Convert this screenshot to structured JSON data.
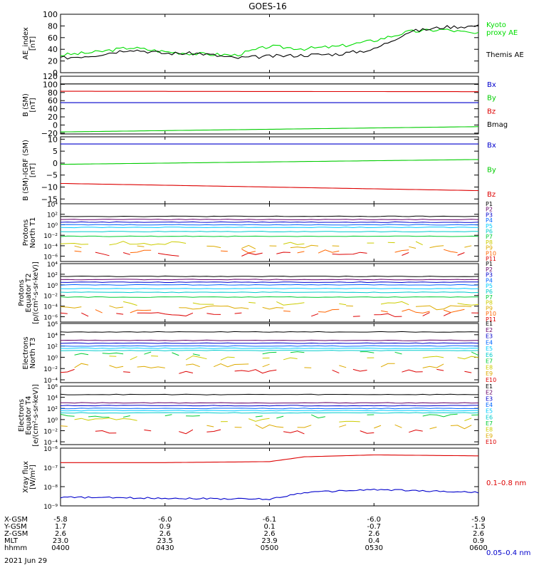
{
  "title": "GOES-16",
  "footer": {
    "rows": [
      {
        "label": "X-GSM",
        "values": [
          "-5.8",
          "-6.0",
          "-6.1",
          "-6.0",
          "-5.9"
        ]
      },
      {
        "label": "Y-GSM",
        "values": [
          "1.7",
          "0.9",
          "0.1",
          "-0.7",
          "-1.5"
        ]
      },
      {
        "label": "Z-GSM",
        "values": [
          "2.6",
          "2.6",
          "2.6",
          "2.6",
          "2.6"
        ]
      },
      {
        "label": "MLT",
        "values": [
          "23.0",
          "23.5",
          "23.9",
          "0.4",
          "0.9"
        ]
      },
      {
        "label": "hhmm",
        "values": [
          "0400",
          "0430",
          "0500",
          "0530",
          "0600"
        ]
      }
    ],
    "date": "2021 Jun 29"
  },
  "chart_data": [
    {
      "type": "line",
      "panel": "ae",
      "ylabel": [
        "AE_index",
        "[nT]"
      ],
      "yscale": "linear",
      "ylim": [
        0,
        100
      ],
      "yticks": [
        0,
        20,
        40,
        60,
        80,
        100
      ],
      "ytick_labels": [
        "0",
        "20",
        "40",
        "60",
        "80",
        "100"
      ],
      "x": [
        "0400",
        "0410",
        "0420",
        "0430",
        "0440",
        "0450",
        "0500",
        "0510",
        "0520",
        "0530",
        "0540",
        "0550",
        "0600"
      ],
      "series": [
        {
          "name": "Kyoto proxy AE",
          "color": "#00dd00",
          "values": [
            30,
            35,
            43,
            36,
            32,
            30,
            45,
            41,
            45,
            55,
            70,
            74,
            66
          ]
        },
        {
          "name": "Themis AE",
          "color": "#000000",
          "values": [
            25,
            30,
            40,
            33,
            33,
            25,
            28,
            30,
            32,
            40,
            70,
            78,
            80
          ]
        }
      ],
      "legend_positions": [
        [
          683,
          38
        ],
        [
          683,
          80
        ]
      ]
    },
    {
      "type": "line",
      "panel": "b",
      "ylabel": [
        "B (SM)",
        "[nT]"
      ],
      "yscale": "linear",
      "ylim": [
        -22,
        120
      ],
      "yticks": [
        -20,
        0,
        20,
        40,
        60,
        80,
        100,
        120
      ],
      "ytick_labels": [
        "−20",
        "0",
        "20",
        "40",
        "60",
        "80",
        "100",
        "120"
      ],
      "x": [
        "0400",
        "0600"
      ],
      "series": [
        {
          "name": "Bx",
          "color": "#0000cc",
          "values": [
            55,
            55
          ]
        },
        {
          "name": "By",
          "color": "#00cc00",
          "values": [
            -17,
            -4
          ]
        },
        {
          "name": "Bz",
          "color": "#dd0000",
          "values": [
            83,
            82
          ]
        },
        {
          "name": "Bmag",
          "color": "#000000",
          "values": [
            101,
            101
          ]
        }
      ]
    },
    {
      "type": "line",
      "panel": "bigrf",
      "ylabel": [
        "B (SM)-IGRF (SM)",
        "[nT]"
      ],
      "yscale": "linear",
      "ylim": [
        -17,
        11
      ],
      "yticks": [
        -15,
        -10,
        -5,
        0,
        5,
        10
      ],
      "ytick_labels": [
        "−15",
        "−10",
        "−5",
        "0",
        "5",
        "10"
      ],
      "x": [
        "0400",
        "0600"
      ],
      "series": [
        {
          "name": "Bx",
          "color": "#0000cc",
          "values": [
            8,
            8
          ]
        },
        {
          "name": "By",
          "color": "#00cc00",
          "values": [
            -0.5,
            1.5
          ]
        },
        {
          "name": "Bz",
          "color": "#dd0000",
          "values": [
            -8.5,
            -11.5
          ]
        }
      ]
    },
    {
      "type": "line",
      "panel": "protons_t1",
      "ylabel": [
        "Protons",
        "North T1"
      ],
      "yscale": "log",
      "ylim": [
        -7,
        4
      ],
      "yticks": [
        4,
        2,
        0,
        -2,
        -4,
        -6
      ],
      "ytick_labels": [
        "10⁴",
        "10²",
        "10⁰",
        "10⁻²",
        "10⁻⁴",
        "10⁻⁶"
      ],
      "legend": [
        "P1",
        "P2",
        "P3",
        "P4",
        "P5",
        "P6",
        "P7",
        "P8",
        "P9",
        "P10",
        "P11"
      ],
      "series_log": [
        1.6,
        1.0,
        0.5,
        0,
        -0.5,
        -1.3,
        -2.2,
        -3.5,
        -4.3,
        -5.0,
        -5.6
      ]
    },
    {
      "type": "line",
      "panel": "protons_t2",
      "ylabel": [
        "Protons",
        "Equator T2",
        "[p/(cm²-s-sr-keV)]"
      ],
      "yscale": "log",
      "ylim": [
        -7,
        4
      ],
      "yticks": [
        4,
        2,
        0,
        -2,
        -4,
        -6
      ],
      "ytick_labels": [
        "10⁴",
        "10²",
        "10⁰",
        "10⁻²",
        "10⁻⁴",
        "10⁻⁶"
      ],
      "legend": [
        "P1",
        "P2",
        "P3",
        "P4",
        "P5",
        "P6",
        "P7",
        "P8",
        "P9",
        "P10",
        "P11"
      ],
      "series_log": [
        1.6,
        1.0,
        0.5,
        0,
        -0.7,
        -1.4,
        -2.3,
        -3.5,
        -4.3,
        -5.0,
        -5.6
      ]
    },
    {
      "type": "line",
      "panel": "electrons_t3",
      "ylabel": [
        "Electrons",
        "North T3"
      ],
      "yscale": "log",
      "ylim": [
        -4.5,
        6
      ],
      "yticks": [
        6,
        4,
        2,
        0,
        -2,
        -4
      ],
      "ytick_labels": [
        "10⁶",
        "10⁴",
        "10²",
        "10⁰",
        "10⁻²",
        "10⁻⁴"
      ],
      "legend": [
        "E1",
        "E2",
        "E3",
        "E4",
        "E5",
        "E6",
        "E7",
        "E8",
        "E9",
        "E10"
      ],
      "series_log": [
        4.5,
        3.0,
        2.5,
        2.0,
        1.6,
        1.2,
        0.6,
        -0.1,
        -1.5,
        -2.5
      ]
    },
    {
      "type": "line",
      "panel": "electrons_t4",
      "ylabel": [
        "Electrons",
        "Equator T4",
        "[e/(cm²-s-sr-keV)]"
      ],
      "yscale": "log",
      "ylim": [
        -4.5,
        6
      ],
      "yticks": [
        6,
        4,
        2,
        0,
        -2,
        -4
      ],
      "ytick_labels": [
        "10⁶",
        "10⁴",
        "10²",
        "10⁰",
        "10⁻²",
        "10⁻⁴"
      ],
      "legend": [
        "E1",
        "E2",
        "E3",
        "E4",
        "E5",
        "E6",
        "E7",
        "E8",
        "E9",
        "E10"
      ],
      "series_log": [
        4.5,
        3.0,
        2.5,
        2.0,
        1.6,
        1.2,
        0.6,
        -0.1,
        -1.3,
        -2.2
      ]
    },
    {
      "type": "line",
      "panel": "xray",
      "ylabel": [
        "Xray flux",
        "[W/m²]"
      ],
      "yscale": "log",
      "ylim": [
        -9,
        -6
      ],
      "yticks": [
        -6,
        -7,
        -8,
        -9
      ],
      "ytick_labels": [
        "10⁻⁶",
        "10⁻⁷",
        "10⁻⁸",
        "10⁻⁹"
      ],
      "x": [
        "0400",
        "0430",
        "0500",
        "0510",
        "0530",
        "0600"
      ],
      "series": [
        {
          "name": "0.1–0.8 nm",
          "color": "#dd0000",
          "values_log": [
            -6.75,
            -6.75,
            -6.7,
            -6.45,
            -6.35,
            -6.4
          ]
        },
        {
          "name": "0.05–0.4 nm",
          "color": "#0000cc",
          "values_log": [
            -8.55,
            -8.6,
            -8.65,
            -8.3,
            -8.15,
            -8.3
          ]
        }
      ]
    }
  ]
}
